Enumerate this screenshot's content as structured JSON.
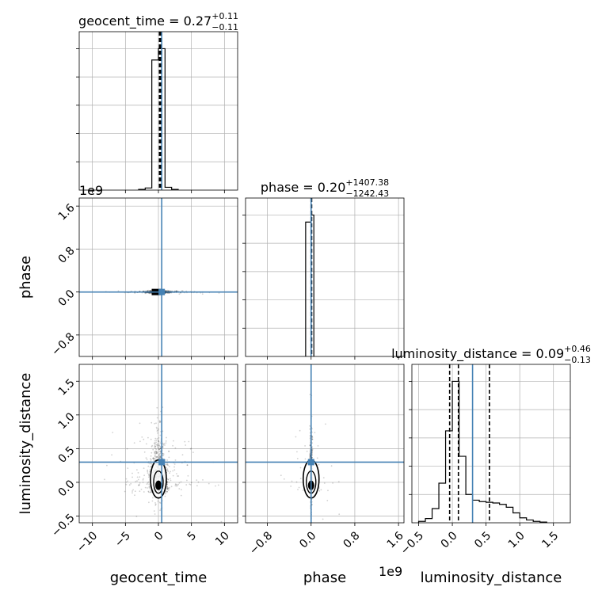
{
  "chart_data": [
    {
      "type": "histogram",
      "panel": "geocent_time-marginal",
      "title_param": "geocent_time",
      "title_value": "0.27",
      "title_plus": "+0.11",
      "title_minus": "−0.11",
      "xlim": [
        -12,
        12
      ],
      "bins": [
        [
          -3,
          -2,
          0.005
        ],
        [
          -2,
          -1,
          0.015
        ],
        [
          -1,
          0,
          0.92
        ],
        [
          0,
          1,
          1.0
        ],
        [
          1,
          2,
          0.02
        ],
        [
          2,
          3,
          0.005
        ]
      ],
      "quantiles": [
        0.16,
        0.27,
        0.38
      ],
      "truth": 0.5,
      "grid": true
    },
    {
      "type": "histogram",
      "panel": "phase-marginal",
      "title_param": "phase",
      "title_value": "0.20",
      "title_plus": "+1407.38",
      "title_minus": "−1242.43",
      "xlim": [
        -1.2,
        1.7
      ],
      "bins": [
        [
          -0.1,
          0.0,
          0.95
        ],
        [
          0.0,
          0.05,
          1.0
        ]
      ],
      "quantiles": [
        0.0,
        0.0,
        0.01
      ],
      "truth": 0.0,
      "grid": true
    },
    {
      "type": "histogram",
      "panel": "luminosity_distance-marginal",
      "title_param": "luminosity_distance",
      "title_value": "0.09",
      "title_plus": "+0.46",
      "title_minus": "−0.13",
      "xlim": [
        -0.6,
        1.75
      ],
      "bins": [
        [
          -0.5,
          -0.4,
          0.01
        ],
        [
          -0.4,
          -0.3,
          0.03
        ],
        [
          -0.3,
          -0.2,
          0.1
        ],
        [
          -0.2,
          -0.1,
          0.28
        ],
        [
          -0.1,
          0.0,
          0.65
        ],
        [
          0.0,
          0.1,
          1.0
        ],
        [
          0.1,
          0.2,
          0.47
        ],
        [
          0.2,
          0.3,
          0.2
        ],
        [
          0.3,
          0.4,
          0.16
        ],
        [
          0.4,
          0.5,
          0.15
        ],
        [
          0.5,
          0.6,
          0.145
        ],
        [
          0.6,
          0.7,
          0.14
        ],
        [
          0.7,
          0.8,
          0.13
        ],
        [
          0.8,
          0.9,
          0.11
        ],
        [
          0.9,
          1.0,
          0.07
        ],
        [
          1.0,
          1.1,
          0.035
        ],
        [
          1.1,
          1.2,
          0.02
        ],
        [
          1.2,
          1.3,
          0.01
        ],
        [
          1.3,
          1.4,
          0.005
        ]
      ],
      "quantiles": [
        -0.04,
        0.09,
        0.55
      ],
      "truth": 0.3,
      "grid": true
    },
    {
      "type": "scatter",
      "panel": "phase-vs-geocent_time",
      "xlim": [
        -12,
        12
      ],
      "ylim": [
        -1.2,
        1.75
      ],
      "truth": [
        0.5,
        0.0
      ],
      "grid": true
    },
    {
      "type": "scatter",
      "panel": "luminosity_distance-vs-geocent_time",
      "xlim": [
        -12,
        12
      ],
      "ylim": [
        -0.6,
        1.75
      ],
      "truth": [
        0.5,
        0.3
      ],
      "grid": true
    },
    {
      "type": "scatter",
      "panel": "luminosity_distance-vs-phase",
      "xlim": [
        -1.2,
        1.7
      ],
      "ylim": [
        -0.6,
        1.75
      ],
      "truth": [
        0.0,
        0.3
      ],
      "grid": true
    }
  ],
  "axes": {
    "geocent_time": {
      "label": "geocent_time",
      "ticks": [
        -10,
        -5,
        0,
        5,
        10
      ],
      "tick_labels": [
        "−10",
        "−5",
        "0",
        "5",
        "10"
      ]
    },
    "phase": {
      "label": "phase",
      "ticks": [
        -0.8,
        0.0,
        0.8,
        1.6
      ],
      "tick_labels": [
        "−0.8",
        "0.0",
        "0.8",
        "1.6"
      ],
      "offset_text": "1e9"
    },
    "luminosity_distance": {
      "label": "luminosity_distance",
      "ticks": [
        -0.5,
        0.0,
        0.5,
        1.0,
        1.5
      ],
      "tick_labels": [
        "−0.5",
        "0.0",
        "0.5",
        "1.0",
        "1.5"
      ]
    }
  },
  "colors": {
    "truth": "#4682b4",
    "hist": "#000000",
    "grid": "#b0b0b0",
    "scatter": "#000000"
  }
}
